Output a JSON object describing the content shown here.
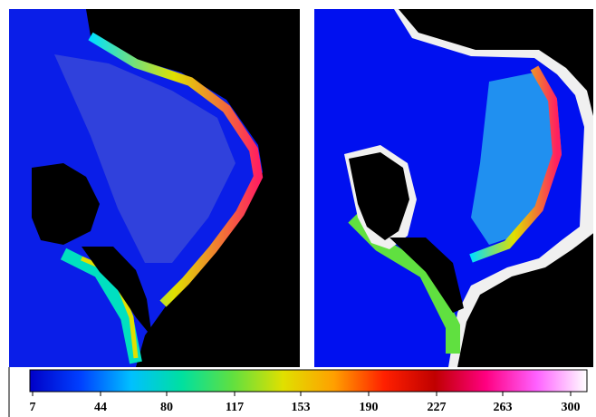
{
  "colorbar": {
    "range": [
      7,
      300
    ],
    "ticks": [
      7,
      44,
      80,
      117,
      153,
      190,
      227,
      263,
      300
    ],
    "colors": [
      "#0000c8",
      "#0040ff",
      "#00c0ff",
      "#00e0a0",
      "#60e040",
      "#e0e000",
      "#ffa000",
      "#ff2000",
      "#c00000",
      "#ff0080",
      "#ff60ff",
      "#ffffff"
    ]
  }
}
